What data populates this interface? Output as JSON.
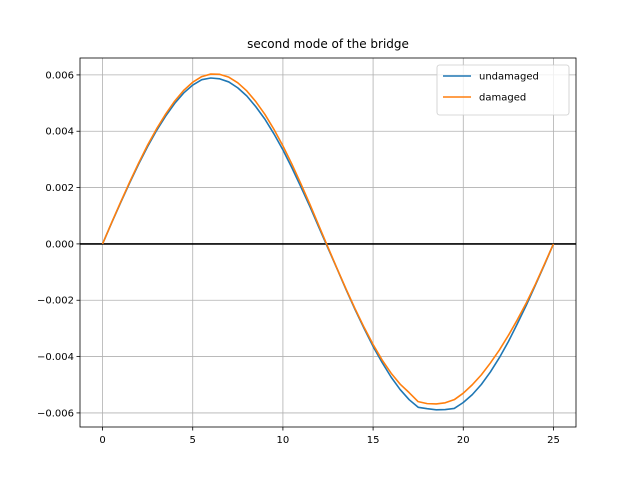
{
  "chart_data": {
    "type": "line",
    "title": "second mode of the bridge",
    "xlabel": "",
    "ylabel": "",
    "xlim": [
      -1.25,
      26.25
    ],
    "ylim": [
      -0.0065,
      0.0066
    ],
    "xticks": [
      0,
      5,
      10,
      15,
      20,
      25
    ],
    "xtick_labels": [
      "0",
      "5",
      "10",
      "15",
      "20",
      "25"
    ],
    "yticks": [
      -0.006,
      -0.004,
      -0.002,
      0.0,
      0.002,
      0.004,
      0.006
    ],
    "ytick_labels": [
      "−0.006",
      "−0.004",
      "−0.002",
      "0.000",
      "0.002",
      "0.004",
      "0.006"
    ],
    "grid": true,
    "legend_position": "upper right",
    "reference_line": {
      "y": 0.0,
      "color": "#000000"
    },
    "x": [
      0,
      0.5,
      1,
      1.5,
      2,
      2.5,
      3,
      3.5,
      4,
      4.5,
      5,
      5.5,
      6,
      6.5,
      7,
      7.5,
      8,
      8.5,
      9,
      9.5,
      10,
      10.5,
      11,
      11.5,
      12,
      12.5,
      13,
      13.5,
      14,
      14.5,
      15,
      15.5,
      16,
      16.5,
      17,
      17.5,
      18,
      18.5,
      19,
      19.5,
      20,
      20.5,
      21,
      21.5,
      22,
      22.5,
      23,
      23.5,
      24,
      24.5,
      25
    ],
    "series": [
      {
        "name": "undamaged",
        "color": "#1f77b4",
        "values": [
          0.0,
          0.00074,
          0.00146,
          0.00216,
          0.00283,
          0.00346,
          0.00403,
          0.00454,
          0.00499,
          0.00536,
          0.00564,
          0.00583,
          0.00589,
          0.00586,
          0.00575,
          0.00554,
          0.00525,
          0.00487,
          0.00443,
          0.00391,
          0.00334,
          0.0027,
          0.00202,
          0.00132,
          0.00058,
          -0.00015,
          -0.00088,
          -0.00162,
          -0.00233,
          -0.003,
          -0.00364,
          -0.00421,
          -0.00473,
          -0.00517,
          -0.00553,
          -0.0058,
          -0.00585,
          -0.00589,
          -0.00588,
          -0.00584,
          -0.00563,
          -0.00535,
          -0.00499,
          -0.00455,
          -0.00404,
          -0.00347,
          -0.00283,
          -0.00217,
          -0.00146,
          -0.00074,
          0.0
        ]
      },
      {
        "name": "damaged",
        "color": "#ff7f0e",
        "values": [
          0.0,
          0.00075,
          0.00148,
          0.00219,
          0.00287,
          0.00351,
          0.00409,
          0.00461,
          0.00507,
          0.00545,
          0.00574,
          0.00594,
          0.00603,
          0.00602,
          0.00592,
          0.00572,
          0.00543,
          0.00505,
          0.0046,
          0.00407,
          0.00348,
          0.00283,
          0.00213,
          0.0014,
          0.00064,
          -0.00012,
          -0.00087,
          -0.0016,
          -0.0023,
          -0.00296,
          -0.00357,
          -0.00412,
          -0.00459,
          -0.00498,
          -0.00528,
          -0.0056,
          -0.00567,
          -0.00568,
          -0.00564,
          -0.00553,
          -0.0053,
          -0.005,
          -0.00465,
          -0.00423,
          -0.00377,
          -0.00325,
          -0.00269,
          -0.00209,
          -0.00143,
          -0.00072,
          0.0
        ]
      }
    ]
  }
}
